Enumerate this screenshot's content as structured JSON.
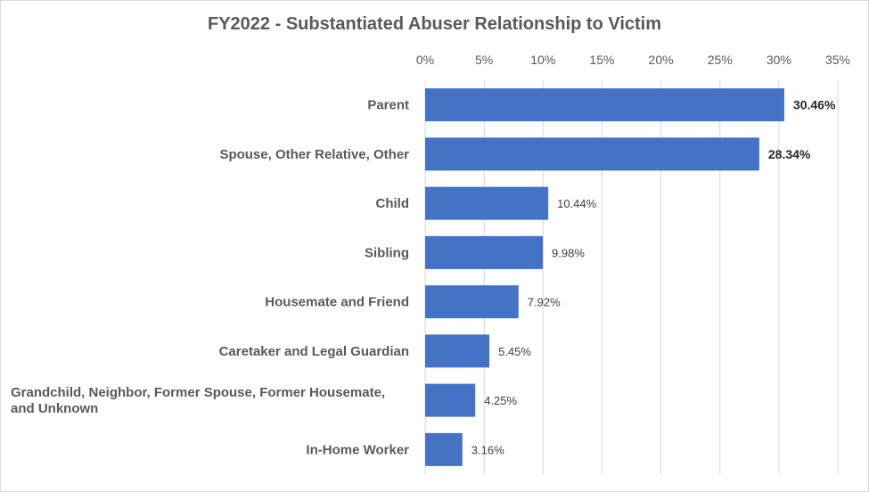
{
  "chart_data": {
    "type": "bar",
    "orientation": "horizontal",
    "title": "FY2022 - Substantiated Abuser Relationship to Victim",
    "xlabel": "",
    "ylabel": "",
    "xlim": [
      0,
      35
    ],
    "x_ticks": [
      "0%",
      "5%",
      "10%",
      "15%",
      "20%",
      "25%",
      "30%",
      "35%"
    ],
    "x_axis_position": "top",
    "grid": true,
    "categories": [
      "Parent",
      "Spouse, Other Relative, Other",
      "Child",
      "Sibling",
      "Housemate and Friend",
      "Caretaker and Legal Guardian",
      "Grandchild, Neighbor, Former Spouse, Former Housemate, and Unknown",
      "In-Home Worker"
    ],
    "category_lines": [
      [
        "Parent"
      ],
      [
        "Spouse, Other Relative, Other"
      ],
      [
        "Child"
      ],
      [
        "Sibling"
      ],
      [
        "Housemate and Friend"
      ],
      [
        "Caretaker and Legal Guardian"
      ],
      [
        "Grandchild, Neighbor, Former Spouse, Former Housemate,",
        "and Unknown"
      ],
      [
        "In-Home Worker"
      ]
    ],
    "values": [
      30.46,
      28.34,
      10.44,
      9.98,
      7.92,
      5.45,
      4.25,
      3.16
    ],
    "data_labels": [
      "30.46%",
      "28.34%",
      "10.44%",
      "9.98%",
      "7.92%",
      "5.45%",
      "4.25%",
      "3.16%"
    ],
    "bold_labels": [
      true,
      true,
      false,
      false,
      false,
      false,
      false,
      false
    ],
    "bar_color": "#4472c4"
  }
}
